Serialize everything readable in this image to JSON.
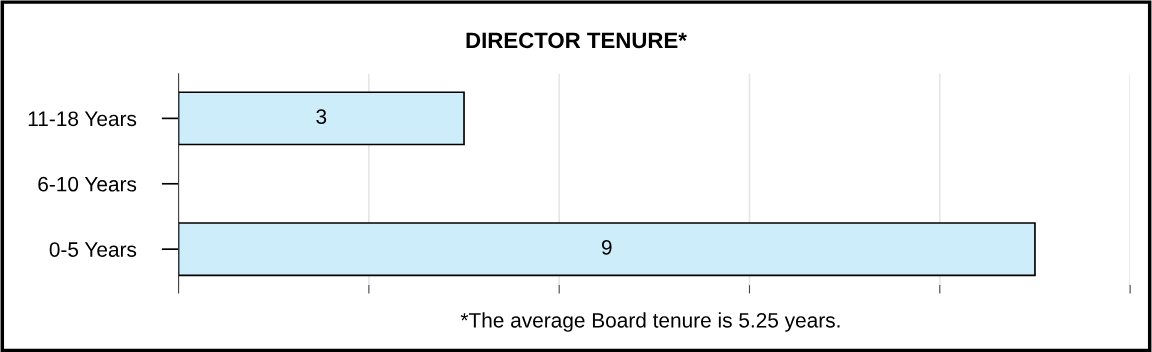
{
  "chart_data": {
    "type": "bar",
    "orientation": "horizontal",
    "title": "DIRECTOR TENURE*",
    "categories": [
      "11-18 Years",
      "6-10 Years",
      "0-5 Years"
    ],
    "values": [
      3,
      0,
      9
    ],
    "value_labels": [
      "3",
      null,
      "9"
    ],
    "color": "#cdedfb",
    "xlim": [
      0,
      10
    ],
    "xticks": [
      {
        "value": 0,
        "label": null
      },
      {
        "value": 2,
        "label": null
      },
      {
        "value": 4,
        "label": null
      },
      {
        "value": 6,
        "label": null
      },
      {
        "value": 8,
        "label": null
      },
      {
        "value": 10,
        "label": null
      }
    ],
    "grid": "x",
    "tick_labels": "y",
    "annotations": [
      "*The average Board tenure is 5.25 years."
    ]
  }
}
